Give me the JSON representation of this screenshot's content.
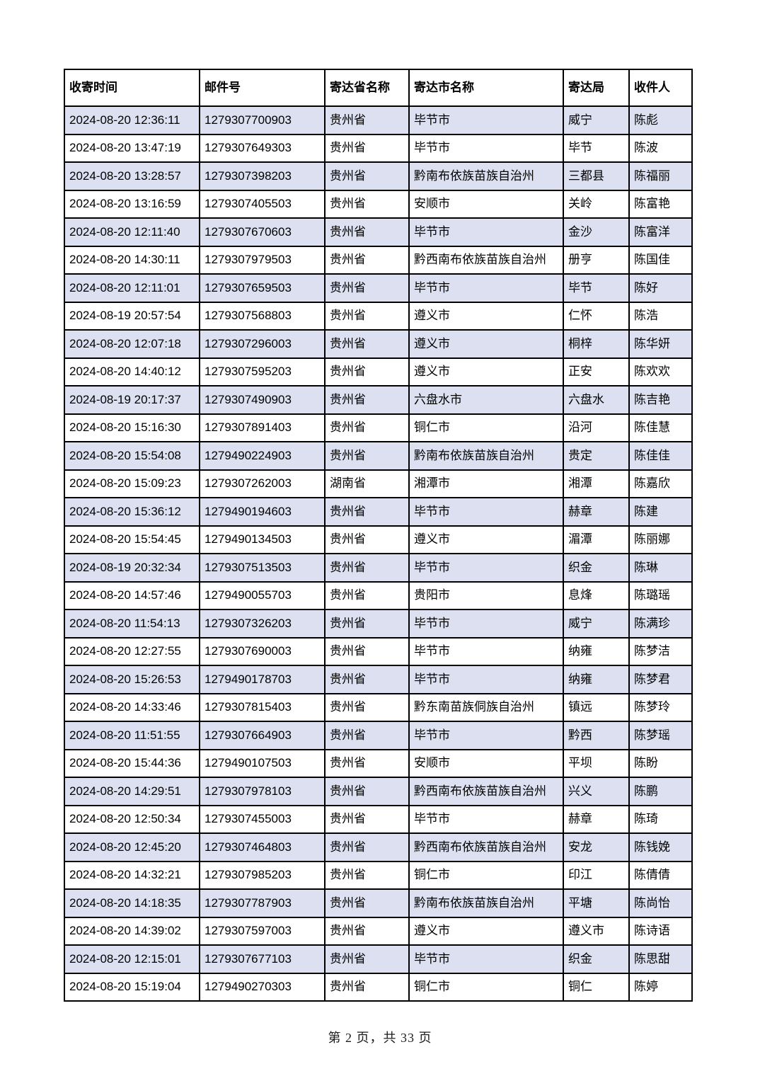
{
  "table": {
    "headers": [
      "收寄时间",
      "邮件号",
      "寄达省名称",
      "寄达市名称",
      "寄达局",
      "收件人"
    ],
    "rows": [
      [
        "2024-08-20 12:36:11",
        "1279307700903",
        "贵州省",
        "毕节市",
        "威宁",
        "陈彪"
      ],
      [
        "2024-08-20 13:47:19",
        "1279307649303",
        "贵州省",
        "毕节市",
        "毕节",
        "陈波"
      ],
      [
        "2024-08-20 13:28:57",
        "1279307398203",
        "贵州省",
        "黔南布依族苗族自治州",
        "三都县",
        "陈福丽"
      ],
      [
        "2024-08-20 13:16:59",
        "1279307405503",
        "贵州省",
        "安顺市",
        "关岭",
        "陈富艳"
      ],
      [
        "2024-08-20 12:11:40",
        "1279307670603",
        "贵州省",
        "毕节市",
        "金沙",
        "陈富洋"
      ],
      [
        "2024-08-20 14:30:11",
        "1279307979503",
        "贵州省",
        "黔西南布依族苗族自治州",
        "册亨",
        "陈国佳"
      ],
      [
        "2024-08-20 12:11:01",
        "1279307659503",
        "贵州省",
        "毕节市",
        "毕节",
        "陈好"
      ],
      [
        "2024-08-19 20:57:54",
        "1279307568803",
        "贵州省",
        "遵义市",
        "仁怀",
        "陈浩"
      ],
      [
        "2024-08-20 12:07:18",
        "1279307296003",
        "贵州省",
        "遵义市",
        "桐梓",
        "陈华妍"
      ],
      [
        "2024-08-20 14:40:12",
        "1279307595203",
        "贵州省",
        "遵义市",
        "正安",
        "陈欢欢"
      ],
      [
        "2024-08-19 20:17:37",
        "1279307490903",
        "贵州省",
        "六盘水市",
        "六盘水",
        "陈吉艳"
      ],
      [
        "2024-08-20 15:16:30",
        "1279307891403",
        "贵州省",
        "铜仁市",
        "沿河",
        "陈佳慧"
      ],
      [
        "2024-08-20 15:54:08",
        "1279490224903",
        "贵州省",
        "黔南布依族苗族自治州",
        "贵定",
        "陈佳佳"
      ],
      [
        "2024-08-20 15:09:23",
        "1279307262003",
        "湖南省",
        "湘潭市",
        "湘潭",
        "陈嘉欣"
      ],
      [
        "2024-08-20 15:36:12",
        "1279490194603",
        "贵州省",
        "毕节市",
        "赫章",
        "陈建"
      ],
      [
        "2024-08-20 15:54:45",
        "1279490134503",
        "贵州省",
        "遵义市",
        "湄潭",
        "陈丽娜"
      ],
      [
        "2024-08-19 20:32:34",
        "1279307513503",
        "贵州省",
        "毕节市",
        "织金",
        "陈琳"
      ],
      [
        "2024-08-20 14:57:46",
        "1279490055703",
        "贵州省",
        "贵阳市",
        "息烽",
        "陈璐瑶"
      ],
      [
        "2024-08-20 11:54:13",
        "1279307326203",
        "贵州省",
        "毕节市",
        "威宁",
        "陈满珍"
      ],
      [
        "2024-08-20 12:27:55",
        "1279307690003",
        "贵州省",
        "毕节市",
        "纳雍",
        "陈梦洁"
      ],
      [
        "2024-08-20 15:26:53",
        "1279490178703",
        "贵州省",
        "毕节市",
        "纳雍",
        "陈梦君"
      ],
      [
        "2024-08-20 14:33:46",
        "1279307815403",
        "贵州省",
        "黔东南苗族侗族自治州",
        "镇远",
        "陈梦玲"
      ],
      [
        "2024-08-20 11:51:55",
        "1279307664903",
        "贵州省",
        "毕节市",
        "黔西",
        "陈梦瑶"
      ],
      [
        "2024-08-20 15:44:36",
        "1279490107503",
        "贵州省",
        "安顺市",
        "平坝",
        "陈盼"
      ],
      [
        "2024-08-20 14:29:51",
        "1279307978103",
        "贵州省",
        "黔西南布依族苗族自治州",
        "兴义",
        "陈鹏"
      ],
      [
        "2024-08-20 12:50:34",
        "1279307455003",
        "贵州省",
        "毕节市",
        "赫章",
        "陈琦"
      ],
      [
        "2024-08-20 12:45:20",
        "1279307464803",
        "贵州省",
        "黔西南布依族苗族自治州",
        "安龙",
        "陈钱娩"
      ],
      [
        "2024-08-20 14:32:21",
        "1279307985203",
        "贵州省",
        "铜仁市",
        "印江",
        "陈倩倩"
      ],
      [
        "2024-08-20 14:18:35",
        "1279307787903",
        "贵州省",
        "黔南布依族苗族自治州",
        "平塘",
        "陈尚怡"
      ],
      [
        "2024-08-20 14:39:02",
        "1279307597003",
        "贵州省",
        "遵义市",
        "遵义市",
        "陈诗语"
      ],
      [
        "2024-08-20 12:15:01",
        "1279307677103",
        "贵州省",
        "毕节市",
        "织金",
        "陈思甜"
      ],
      [
        "2024-08-20 15:19:04",
        "1279490270303",
        "贵州省",
        "铜仁市",
        "铜仁",
        "陈婷"
      ]
    ]
  },
  "footer": {
    "text": "第 2 页，共 33 页"
  },
  "colors": {
    "stripe": "#dce0f1",
    "border": "#000000"
  }
}
